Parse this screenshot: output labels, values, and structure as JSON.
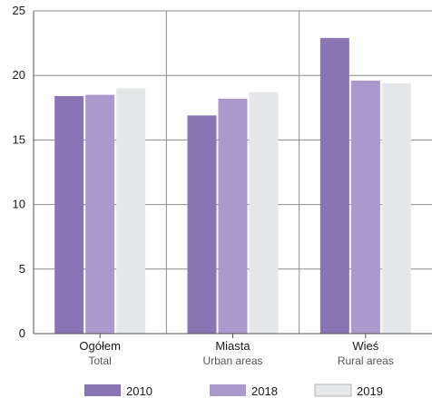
{
  "chart_data": {
    "type": "bar",
    "categories": [
      {
        "label_pl": "Ogółem",
        "label_en": "Total"
      },
      {
        "label_pl": "Miasta",
        "label_en": "Urban areas"
      },
      {
        "label_pl": "Wieś",
        "label_en": "Rural areas"
      }
    ],
    "series": [
      {
        "name": "2010",
        "color": "#8a74b4",
        "values": [
          18.4,
          16.9,
          22.9
        ]
      },
      {
        "name": "2018",
        "color": "#a999cd",
        "values": [
          18.5,
          18.2,
          19.6
        ]
      },
      {
        "name": "2019",
        "color": "#e6e7e8",
        "values": [
          19.0,
          18.7,
          19.4
        ]
      }
    ],
    "y_ticks": [
      "0",
      "5",
      "10",
      "15",
      "20",
      "25"
    ],
    "ylim": [
      0,
      25
    ],
    "grid": true,
    "legend_position": "bottom"
  }
}
